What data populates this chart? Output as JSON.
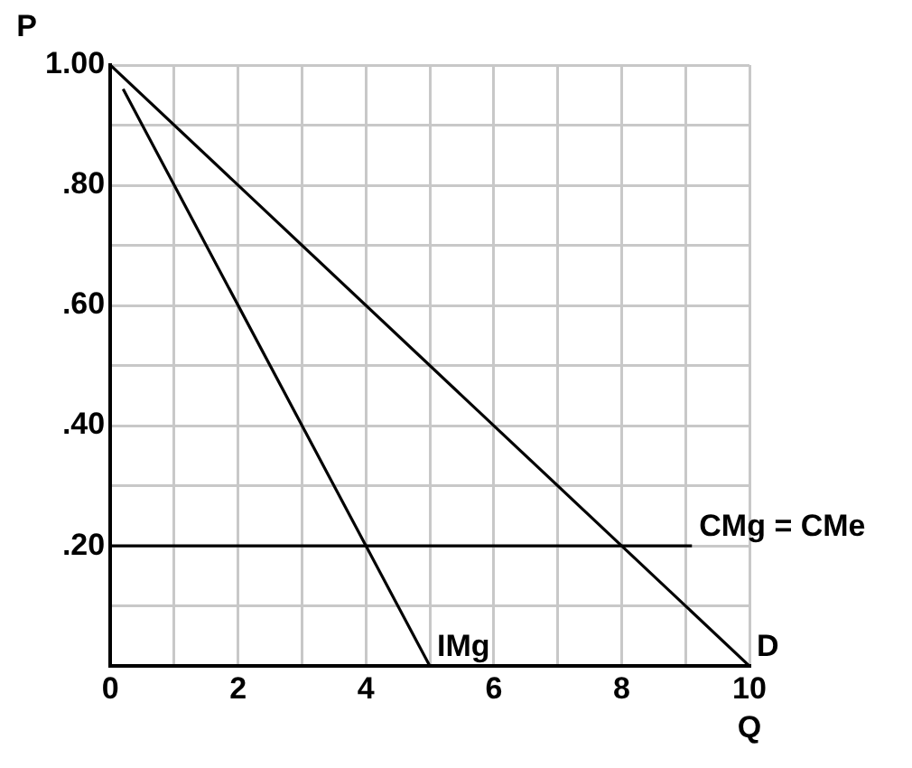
{
  "chart_data": {
    "type": "line",
    "xlabel": "Q",
    "ylabel": "P",
    "series": [
      {
        "name": "D",
        "color": "#000000",
        "x": [
          0,
          10
        ],
        "values": [
          1,
          0
        ]
      },
      {
        "name": "IMg",
        "color": "#000000",
        "x": [
          0.2,
          5
        ],
        "values": [
          0.96,
          0
        ]
      },
      {
        "name": "CMg = CMe",
        "color": "#000000",
        "x": [
          0,
          9.1
        ],
        "values": [
          0.2,
          0.2
        ]
      }
    ],
    "xlim": [
      0,
      10
    ],
    "xticks": [
      0,
      {
        "value": 1,
        "label": null
      },
      2,
      {
        "value": 3,
        "label": null
      },
      4,
      {
        "value": 5,
        "label": null
      },
      6,
      {
        "value": 7,
        "label": null
      },
      8,
      {
        "value": 9,
        "label": null
      },
      10
    ],
    "ylim": [
      0,
      1
    ],
    "yticks": [
      {
        "value": 0,
        "label": null
      },
      {
        "value": 0.1,
        "label": null
      },
      {
        "value": 0.2,
        "label": ".20"
      },
      {
        "value": 0.3,
        "label": null
      },
      {
        "value": 0.4,
        "label": ".40"
      },
      {
        "value": 0.5,
        "label": null
      },
      {
        "value": 0.6,
        "label": ".60"
      },
      {
        "value": 0.7,
        "label": null
      },
      {
        "value": 0.8,
        "label": ".80"
      },
      {
        "value": 0.9,
        "label": null
      },
      {
        "value": 1,
        "label": "1.00"
      }
    ],
    "grid": true,
    "legend": false,
    "marker": "none",
    "line_style": "solid"
  }
}
